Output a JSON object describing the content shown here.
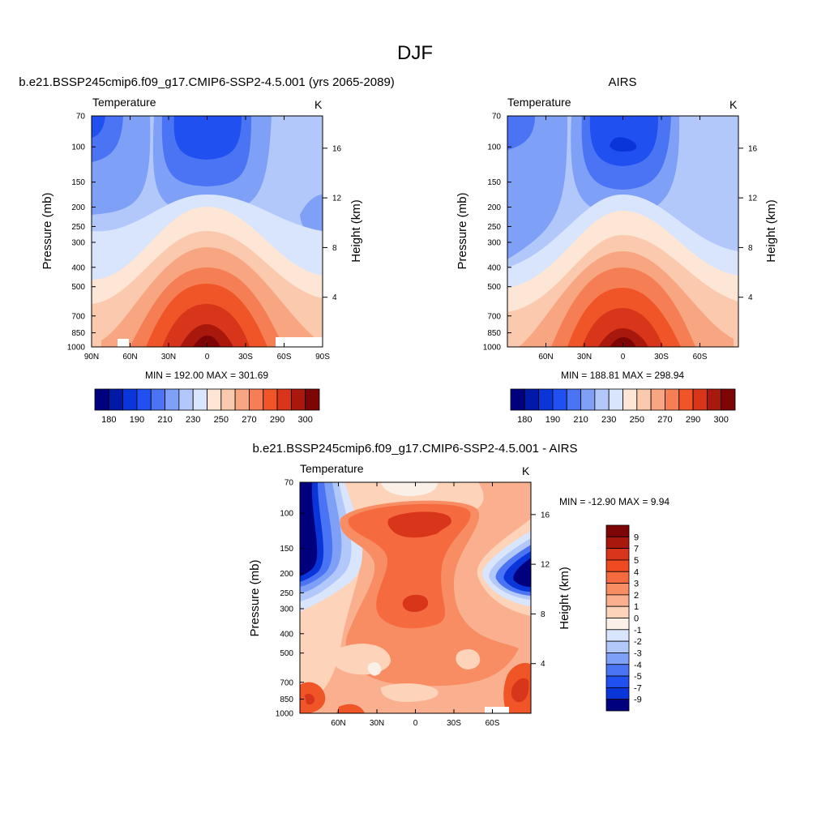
{
  "page_title": "DJF",
  "chart_data": [
    {
      "type": "heatmap",
      "title": "b.e21.BSSP245cmip6.f09_g17.CMIP6-SSP2-4.5.001 (yrs 2065-2089)",
      "left_label": "Temperature",
      "units": "K",
      "ylabel": "Pressure (mb)",
      "ylabel_right": "Height (km)",
      "x_ticks": [
        "90N",
        "60N",
        "30N",
        "0",
        "30S",
        "60S",
        "90S"
      ],
      "y_ticks": [
        "70",
        "100",
        "150",
        "200",
        "250",
        "300",
        "400",
        "500",
        "700",
        "850",
        "1000"
      ],
      "right_ticks": [
        "16",
        "12",
        "8",
        "4"
      ],
      "stats": "MIN = 192.00  MAX = 301.69",
      "colorbar_labels": [
        "180",
        "190",
        "210",
        "230",
        "250",
        "270",
        "290",
        "300"
      ]
    },
    {
      "type": "heatmap",
      "title": "AIRS",
      "left_label": "Temperature",
      "units": "K",
      "ylabel": "Pressure (mb)",
      "ylabel_right": "Height (km)",
      "x_ticks": [
        "60N",
        "30N",
        "0",
        "30S",
        "60S"
      ],
      "y_ticks": [
        "70",
        "100",
        "150",
        "200",
        "250",
        "300",
        "400",
        "500",
        "700",
        "850",
        "1000"
      ],
      "right_ticks": [
        "16",
        "12",
        "8",
        "4"
      ],
      "stats": "MIN = 188.81  MAX = 298.94",
      "colorbar_labels": [
        "180",
        "190",
        "210",
        "230",
        "250",
        "270",
        "290",
        "300"
      ]
    },
    {
      "type": "heatmap",
      "title": "b.e21.BSSP245cmip6.f09_g17.CMIP6-SSP2-4.5.001 - AIRS",
      "left_label": "Temperature",
      "units": "K",
      "ylabel": "Pressure (mb)",
      "ylabel_right": "Height (km)",
      "x_ticks": [
        "60N",
        "30N",
        "0",
        "30S",
        "60S"
      ],
      "y_ticks": [
        "70",
        "100",
        "150",
        "200",
        "250",
        "300",
        "400",
        "500",
        "700",
        "850",
        "1000"
      ],
      "right_ticks": [
        "16",
        "12",
        "8",
        "4"
      ],
      "stats": "MIN = -12.90  MAX =   9.94",
      "colorbar_labels": [
        "9",
        "7",
        "5",
        "4",
        "3",
        "2",
        "1",
        "0",
        "-1",
        "-2",
        "-3",
        "-4",
        "-5",
        "-7",
        "-9"
      ]
    }
  ],
  "colors": {
    "abs_scale": [
      "#00007e",
      "#0019a6",
      "#0a36d9",
      "#2050f0",
      "#4a74f4",
      "#7ea0f6",
      "#b3c8fa",
      "#d8e5fc",
      "#fde6d5",
      "#fbcaae",
      "#f8a582",
      "#f67e55",
      "#f05527",
      "#d8351a",
      "#a8180c",
      "#7e0505"
    ],
    "diff_scale": [
      "#7e0505",
      "#a8180c",
      "#d8351a",
      "#f04a22",
      "#f66a40",
      "#f88c62",
      "#fab08e",
      "#fdd3ba",
      "#fbf0e8",
      "#d8e5fc",
      "#b3c8fa",
      "#7ea0f6",
      "#4a74f4",
      "#2050f0",
      "#0a36d9",
      "#00007e"
    ]
  }
}
